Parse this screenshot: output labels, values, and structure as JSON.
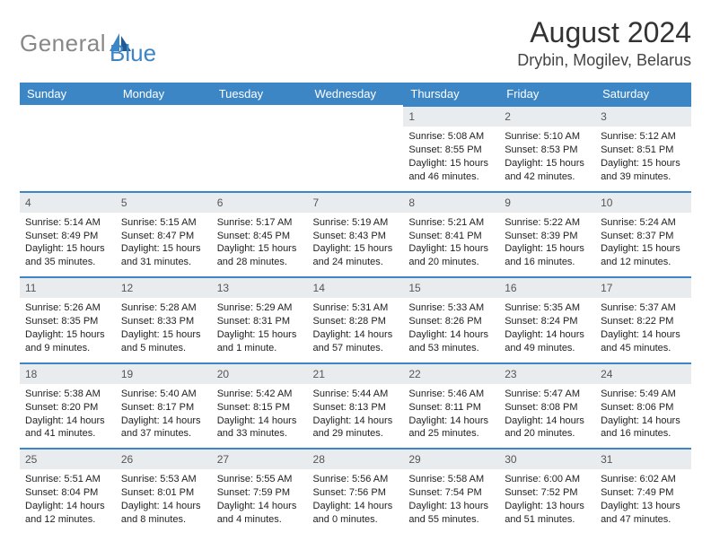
{
  "brand": {
    "part1": "General",
    "part2": "Blue"
  },
  "title": "August 2024",
  "location": "Drybin, Mogilev, Belarus",
  "colors": {
    "accent": "#3d86c6",
    "daynum_bg": "#e9ecef",
    "text": "#222222",
    "title_text": "#333333",
    "location_text": "#444444",
    "brand_grey": "#888888"
  },
  "dow": [
    "Sunday",
    "Monday",
    "Tuesday",
    "Wednesday",
    "Thursday",
    "Friday",
    "Saturday"
  ],
  "first_dow_index": 4,
  "days_in_month": 31,
  "days": {
    "1": {
      "sunrise": "5:08 AM",
      "sunset": "8:55 PM",
      "daylight": "15 hours and 46 minutes."
    },
    "2": {
      "sunrise": "5:10 AM",
      "sunset": "8:53 PM",
      "daylight": "15 hours and 42 minutes."
    },
    "3": {
      "sunrise": "5:12 AM",
      "sunset": "8:51 PM",
      "daylight": "15 hours and 39 minutes."
    },
    "4": {
      "sunrise": "5:14 AM",
      "sunset": "8:49 PM",
      "daylight": "15 hours and 35 minutes."
    },
    "5": {
      "sunrise": "5:15 AM",
      "sunset": "8:47 PM",
      "daylight": "15 hours and 31 minutes."
    },
    "6": {
      "sunrise": "5:17 AM",
      "sunset": "8:45 PM",
      "daylight": "15 hours and 28 minutes."
    },
    "7": {
      "sunrise": "5:19 AM",
      "sunset": "8:43 PM",
      "daylight": "15 hours and 24 minutes."
    },
    "8": {
      "sunrise": "5:21 AM",
      "sunset": "8:41 PM",
      "daylight": "15 hours and 20 minutes."
    },
    "9": {
      "sunrise": "5:22 AM",
      "sunset": "8:39 PM",
      "daylight": "15 hours and 16 minutes."
    },
    "10": {
      "sunrise": "5:24 AM",
      "sunset": "8:37 PM",
      "daylight": "15 hours and 12 minutes."
    },
    "11": {
      "sunrise": "5:26 AM",
      "sunset": "8:35 PM",
      "daylight": "15 hours and 9 minutes."
    },
    "12": {
      "sunrise": "5:28 AM",
      "sunset": "8:33 PM",
      "daylight": "15 hours and 5 minutes."
    },
    "13": {
      "sunrise": "5:29 AM",
      "sunset": "8:31 PM",
      "daylight": "15 hours and 1 minute."
    },
    "14": {
      "sunrise": "5:31 AM",
      "sunset": "8:28 PM",
      "daylight": "14 hours and 57 minutes."
    },
    "15": {
      "sunrise": "5:33 AM",
      "sunset": "8:26 PM",
      "daylight": "14 hours and 53 minutes."
    },
    "16": {
      "sunrise": "5:35 AM",
      "sunset": "8:24 PM",
      "daylight": "14 hours and 49 minutes."
    },
    "17": {
      "sunrise": "5:37 AM",
      "sunset": "8:22 PM",
      "daylight": "14 hours and 45 minutes."
    },
    "18": {
      "sunrise": "5:38 AM",
      "sunset": "8:20 PM",
      "daylight": "14 hours and 41 minutes."
    },
    "19": {
      "sunrise": "5:40 AM",
      "sunset": "8:17 PM",
      "daylight": "14 hours and 37 minutes."
    },
    "20": {
      "sunrise": "5:42 AM",
      "sunset": "8:15 PM",
      "daylight": "14 hours and 33 minutes."
    },
    "21": {
      "sunrise": "5:44 AM",
      "sunset": "8:13 PM",
      "daylight": "14 hours and 29 minutes."
    },
    "22": {
      "sunrise": "5:46 AM",
      "sunset": "8:11 PM",
      "daylight": "14 hours and 25 minutes."
    },
    "23": {
      "sunrise": "5:47 AM",
      "sunset": "8:08 PM",
      "daylight": "14 hours and 20 minutes."
    },
    "24": {
      "sunrise": "5:49 AM",
      "sunset": "8:06 PM",
      "daylight": "14 hours and 16 minutes."
    },
    "25": {
      "sunrise": "5:51 AM",
      "sunset": "8:04 PM",
      "daylight": "14 hours and 12 minutes."
    },
    "26": {
      "sunrise": "5:53 AM",
      "sunset": "8:01 PM",
      "daylight": "14 hours and 8 minutes."
    },
    "27": {
      "sunrise": "5:55 AM",
      "sunset": "7:59 PM",
      "daylight": "14 hours and 4 minutes."
    },
    "28": {
      "sunrise": "5:56 AM",
      "sunset": "7:56 PM",
      "daylight": "14 hours and 0 minutes."
    },
    "29": {
      "sunrise": "5:58 AM",
      "sunset": "7:54 PM",
      "daylight": "13 hours and 55 minutes."
    },
    "30": {
      "sunrise": "6:00 AM",
      "sunset": "7:52 PM",
      "daylight": "13 hours and 51 minutes."
    },
    "31": {
      "sunrise": "6:02 AM",
      "sunset": "7:49 PM",
      "daylight": "13 hours and 47 minutes."
    }
  },
  "labels": {
    "sunrise": "Sunrise:",
    "sunset": "Sunset:",
    "daylight": "Daylight:"
  }
}
